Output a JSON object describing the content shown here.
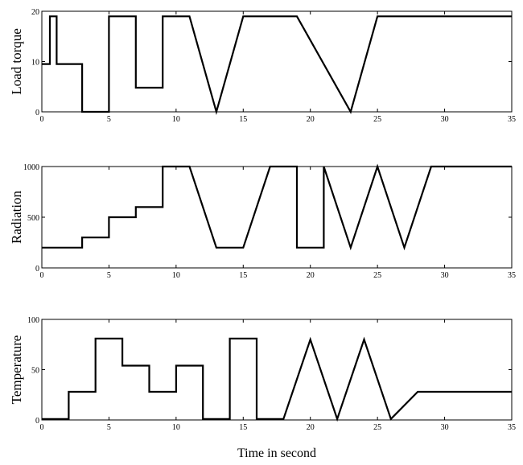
{
  "chart_data": [
    {
      "type": "line",
      "title": "",
      "xlabel": "",
      "ylabel": "Load torque",
      "xlim": [
        0,
        35
      ],
      "ylim": [
        0,
        20
      ],
      "xticks": [
        0,
        5,
        10,
        15,
        20,
        25,
        30,
        35
      ],
      "yticks": [
        0,
        10,
        20
      ],
      "grid": false,
      "series": [
        {
          "color": "#000000",
          "x": [
            0,
            0.6,
            0.6,
            1.1,
            1.1,
            3,
            3,
            5,
            5,
            7,
            7,
            9,
            9,
            11,
            13,
            15,
            19,
            23,
            25,
            35
          ],
          "y": [
            9.5,
            9.5,
            19,
            19,
            9.5,
            9.5,
            0,
            0,
            19,
            19,
            4.8,
            4.8,
            19,
            19,
            0,
            19,
            19,
            0,
            19,
            19
          ]
        }
      ]
    },
    {
      "type": "line",
      "title": "",
      "xlabel": "",
      "ylabel": "Radiation",
      "xlim": [
        0,
        35
      ],
      "ylim": [
        0,
        1000
      ],
      "xticks": [
        0,
        5,
        10,
        15,
        20,
        25,
        30,
        35
      ],
      "yticks": [
        0,
        500,
        1000
      ],
      "grid": false,
      "series": [
        {
          "color": "#000000",
          "x": [
            0,
            3,
            3,
            5,
            5,
            7,
            7,
            9,
            9,
            11,
            13,
            15,
            17,
            19,
            19,
            21,
            21,
            23,
            25,
            27,
            29,
            35
          ],
          "y": [
            200,
            200,
            300,
            300,
            500,
            500,
            600,
            600,
            1000,
            1000,
            200,
            200,
            1000,
            1000,
            200,
            200,
            1000,
            200,
            1000,
            200,
            1000,
            1000
          ]
        }
      ]
    },
    {
      "type": "line",
      "title": "",
      "xlabel": "Time in second",
      "ylabel": "Temperature",
      "xlim": [
        0,
        35
      ],
      "ylim": [
        0,
        100
      ],
      "xticks": [
        0,
        5,
        10,
        15,
        20,
        25,
        30,
        35
      ],
      "yticks": [
        0,
        50,
        100
      ],
      "grid": false,
      "series": [
        {
          "color": "#000000",
          "x": [
            0,
            2,
            2,
            4,
            4,
            6,
            6,
            8,
            8,
            10,
            10,
            12,
            12,
            14,
            14,
            16,
            16,
            18,
            20,
            22,
            24,
            26,
            28,
            35
          ],
          "y": [
            1,
            1,
            28,
            28,
            81,
            81,
            54,
            54,
            28,
            28,
            54,
            54,
            1,
            1,
            81,
            81,
            1,
            1,
            80,
            1,
            80,
            1,
            28,
            28
          ]
        }
      ]
    }
  ]
}
